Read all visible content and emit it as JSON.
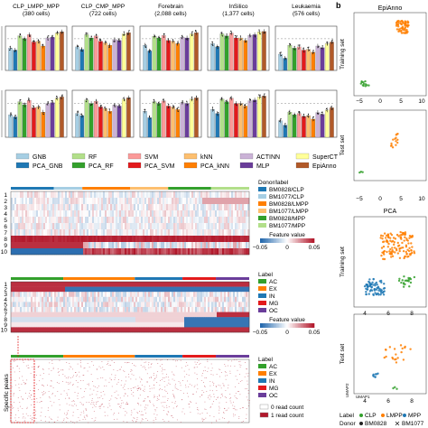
{
  "panel_b_label": "b",
  "datasets": [
    {
      "name": "CLP_LMPP_MPP",
      "cells": "(380 cells)"
    },
    {
      "name": "CLP_CMP_MPP",
      "cells": "(722 cells)"
    },
    {
      "name": "Forebrain",
      "cells": "(2,088 cells)"
    },
    {
      "name": "InSilico",
      "cells": "(1,377 cells)"
    },
    {
      "name": "Leukaemia",
      "cells": "(576 cells)"
    }
  ],
  "methods": [
    {
      "name": "GNB",
      "color": "#a6cee3"
    },
    {
      "name": "PCA_GNB",
      "color": "#1f78b4"
    },
    {
      "name": "RF",
      "color": "#b2df8a"
    },
    {
      "name": "PCA_RF",
      "color": "#33a02c"
    },
    {
      "name": "SVM",
      "color": "#fb9a99"
    },
    {
      "name": "PCA_SVM",
      "color": "#e31a1c"
    },
    {
      "name": "kNN",
      "color": "#fdbf6f"
    },
    {
      "name": "PCA_kNN",
      "color": "#ff7f00"
    },
    {
      "name": "ACTINN",
      "color": "#cab2d6"
    },
    {
      "name": "MLP",
      "color": "#6a3d9a"
    },
    {
      "name": "SuperCT",
      "color": "#ffff99"
    },
    {
      "name": "EpiAnno",
      "color": "#b15928"
    }
  ],
  "chart_data": [
    {
      "type": "bar",
      "row": "top",
      "ylim": [
        0,
        1
      ],
      "categories": [
        "CLP_LMPP_MPP",
        "CLP_CMP_MPP",
        "Forebrain",
        "InSilico",
        "Leukaemia"
      ],
      "series": [
        {
          "name": "GNB",
          "values": [
            0.55,
            0.58,
            0.62,
            0.66,
            0.4
          ]
        },
        {
          "name": "PCA_GNB",
          "values": [
            0.5,
            0.52,
            0.48,
            0.58,
            0.3
          ]
        },
        {
          "name": "RF",
          "values": [
            0.85,
            0.88,
            0.84,
            0.9,
            0.62
          ]
        },
        {
          "name": "PCA_RF",
          "values": [
            0.78,
            0.8,
            0.8,
            0.85,
            0.55
          ]
        },
        {
          "name": "SVM",
          "values": [
            0.88,
            0.85,
            0.86,
            0.92,
            0.58
          ]
        },
        {
          "name": "PCA_SVM",
          "values": [
            0.7,
            0.72,
            0.74,
            0.8,
            0.5
          ]
        },
        {
          "name": "kNN",
          "values": [
            0.72,
            0.68,
            0.72,
            0.8,
            0.52
          ]
        },
        {
          "name": "PCA_kNN",
          "values": [
            0.6,
            0.62,
            0.66,
            0.74,
            0.45
          ]
        },
        {
          "name": "ACTINN",
          "values": [
            0.8,
            0.76,
            0.82,
            0.86,
            0.6
          ]
        },
        {
          "name": "MLP",
          "values": [
            0.82,
            0.74,
            0.8,
            0.88,
            0.56
          ]
        },
        {
          "name": "SuperCT",
          "values": [
            0.92,
            0.9,
            0.9,
            0.95,
            0.66
          ]
        },
        {
          "name": "EpiAnno",
          "values": [
            0.95,
            0.93,
            0.93,
            0.96,
            0.7
          ]
        }
      ]
    },
    {
      "type": "bar",
      "row": "bottom",
      "ylim": [
        0,
        1
      ],
      "categories": [
        "CLP_LMPP_MPP",
        "CLP_CMP_MPP",
        "Forebrain",
        "InSilico",
        "Leukaemia"
      ],
      "series": [
        {
          "name": "GNB",
          "values": [
            0.52,
            0.55,
            0.6,
            0.64,
            0.38
          ]
        },
        {
          "name": "PCA_GNB",
          "values": [
            0.47,
            0.5,
            0.45,
            0.55,
            0.28
          ]
        },
        {
          "name": "RF",
          "values": [
            0.82,
            0.86,
            0.82,
            0.88,
            0.58
          ]
        },
        {
          "name": "PCA_RF",
          "values": [
            0.75,
            0.78,
            0.78,
            0.82,
            0.52
          ]
        },
        {
          "name": "SVM",
          "values": [
            0.85,
            0.83,
            0.84,
            0.9,
            0.55
          ]
        },
        {
          "name": "PCA_SVM",
          "values": [
            0.68,
            0.7,
            0.72,
            0.78,
            0.48
          ]
        },
        {
          "name": "kNN",
          "values": [
            0.7,
            0.66,
            0.7,
            0.78,
            0.5
          ]
        },
        {
          "name": "PCA_kNN",
          "values": [
            0.58,
            0.6,
            0.64,
            0.72,
            0.42
          ]
        },
        {
          "name": "ACTINN",
          "values": [
            0.78,
            0.74,
            0.8,
            0.84,
            0.57
          ]
        },
        {
          "name": "MLP",
          "values": [
            0.8,
            0.72,
            0.78,
            0.86,
            0.53
          ]
        },
        {
          "name": "SuperCT",
          "values": [
            0.9,
            0.88,
            0.88,
            0.93,
            0.63
          ]
        },
        {
          "name": "EpiAnno",
          "values": [
            0.93,
            0.91,
            0.91,
            0.95,
            0.68
          ]
        }
      ]
    }
  ],
  "heatmap1": {
    "row_labels": [
      "1",
      "2",
      "3",
      "4",
      "5",
      "6",
      "7",
      "8",
      "9",
      "10"
    ],
    "legend_title": "Donor/label",
    "legend": [
      {
        "name": "BM0828/CLP",
        "color": "#1f78b4"
      },
      {
        "name": "BM1077/CLP",
        "color": "#a6cee3"
      },
      {
        "name": "BM0828/LMPP",
        "color": "#ff7f00"
      },
      {
        "name": "BM1077/LMPP",
        "color": "#fdbf6f"
      },
      {
        "name": "BM0828/MPP",
        "color": "#33a02c"
      },
      {
        "name": "BM1077/MPP",
        "color": "#b2df8a"
      }
    ],
    "scale_title": "Feature value",
    "scale_ticks": [
      "−0.05",
      "0",
      "0.05"
    ]
  },
  "heatmap2": {
    "row_labels": [
      "1",
      "2",
      "3",
      "4",
      "5",
      "6",
      "7",
      "8",
      "9",
      "10"
    ],
    "legend_title": "Label",
    "legend": [
      {
        "name": "AC",
        "color": "#33a02c"
      },
      {
        "name": "EX",
        "color": "#ff7f00"
      },
      {
        "name": "IN",
        "color": "#1f78b4"
      },
      {
        "name": "MG",
        "color": "#e31a1c"
      },
      {
        "name": "OC",
        "color": "#6a3d9a"
      }
    ],
    "scale_title": "Feature value",
    "scale_ticks": [
      "−0.05",
      "0",
      "0.05"
    ]
  },
  "heatmap3": {
    "side_label": "Specific peaks",
    "legend_title": "Label",
    "legend": [
      {
        "name": "AC",
        "color": "#33a02c"
      },
      {
        "name": "EX",
        "color": "#ff7f00"
      },
      {
        "name": "IN",
        "color": "#1f78b4"
      },
      {
        "name": "MG",
        "color": "#e31a1c"
      },
      {
        "name": "OC",
        "color": "#6a3d9a"
      }
    ],
    "count_legend": [
      {
        "name": "0 read count",
        "color": "#ffffff"
      },
      {
        "name": "1 read count",
        "color": "#b2182b"
      }
    ]
  },
  "panel_b": {
    "title_top": "EpiAnno",
    "title_mid": "PCA",
    "ylabel_train": "Training set",
    "ylabel_test": "Test set",
    "x_ticks_top": [
      "−5",
      "0",
      "5",
      "10"
    ],
    "x_ticks_bottom": [
      "4",
      "6",
      "8"
    ],
    "xlabel": "UMAP1",
    "ylabel": "UMAP2",
    "label_legend_title": "Label",
    "labels": [
      {
        "name": "CLP",
        "color": "#33a02c"
      },
      {
        "name": "LMPP",
        "color": "#ff7f00"
      },
      {
        "name": "MPP",
        "color": "#1f78b4"
      }
    ],
    "donor_legend_title": "Donor",
    "donors": [
      "BM0828",
      "BM1077"
    ]
  }
}
